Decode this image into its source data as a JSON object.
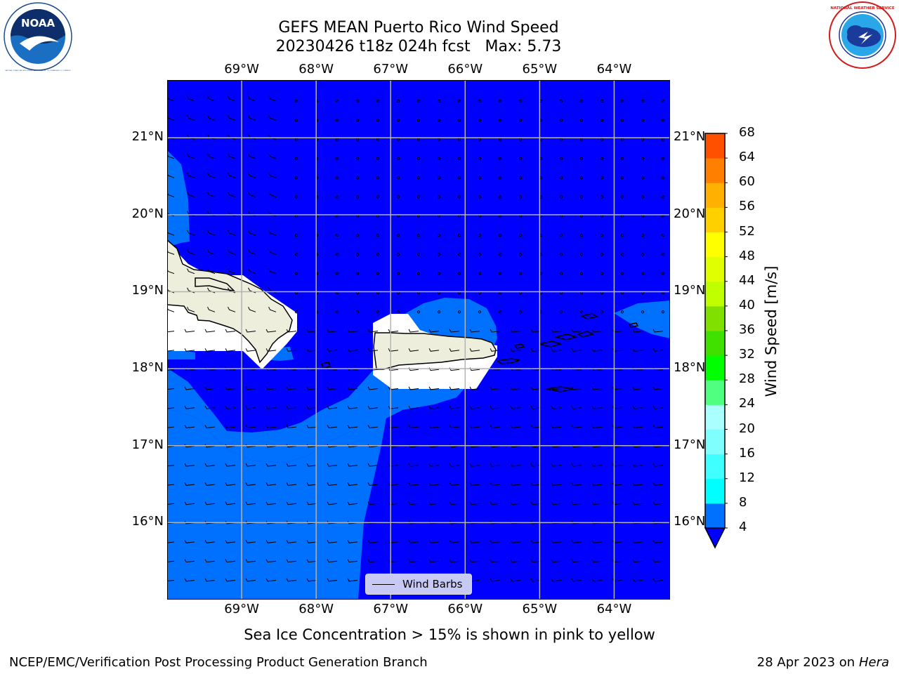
{
  "title": {
    "line1": "GEFS MEAN Puerto Rico Wind Speed",
    "line2": "20230426 t18z 024h fcst   Max: 5.73"
  },
  "logos": {
    "left": {
      "icon": "noaa-logo",
      "text": "NOAA",
      "ring_text": "NATIONAL OCEANIC AND ATMOSPHERIC ADMINISTRATION · U.S. DEPARTMENT OF COMMERCE"
    },
    "right": {
      "icon": "nws-logo",
      "ring_text": "NATIONAL WEATHER SERVICE"
    }
  },
  "map": {
    "lon_ticks": [
      {
        "label": "69°W",
        "value": -69
      },
      {
        "label": "68°W",
        "value": -68
      },
      {
        "label": "67°W",
        "value": -67
      },
      {
        "label": "66°W",
        "value": -66
      },
      {
        "label": "65°W",
        "value": -65
      },
      {
        "label": "64°W",
        "value": -64
      }
    ],
    "lat_ticks": [
      {
        "label": "21°N",
        "value": 21
      },
      {
        "label": "20°N",
        "value": 20
      },
      {
        "label": "19°N",
        "value": 19
      },
      {
        "label": "18°N",
        "value": 18
      },
      {
        "label": "17°N",
        "value": 17
      },
      {
        "label": "16°N",
        "value": 16
      }
    ],
    "lon_range": [
      -70.0,
      -63.25
    ],
    "lat_range": [
      15.0,
      21.75
    ],
    "grid": true,
    "colors": {
      "speed_0_4": "#0000ff",
      "speed_4_8": "#0070ff",
      "land": "#eeeedc"
    },
    "legend": {
      "label": "Wind Barbs",
      "placement": "bottom-center"
    }
  },
  "colorbar": {
    "label": "Wind Speed [m/s]",
    "ticks": [
      "4",
      "8",
      "12",
      "16",
      "20",
      "24",
      "28",
      "32",
      "36",
      "40",
      "44",
      "48",
      "52",
      "56",
      "60",
      "64",
      "68"
    ],
    "colors": [
      "#0070ff",
      "#00ffff",
      "#40ffff",
      "#80ffff",
      "#aaffff",
      "#50ff80",
      "#00ff00",
      "#40e000",
      "#80e000",
      "#c0ff00",
      "#e0ff00",
      "#ffff00",
      "#ffd000",
      "#ffb000",
      "#ff8000",
      "#ff5000",
      "#ff2000",
      "#ff0000"
    ],
    "under_color": "#0000ff"
  },
  "note": "Sea Ice Concentration > 15% is shown in pink to yellow",
  "footer": {
    "left": "NCEP/EMC/Verification Post Processing Product Generation Branch",
    "right_prefix": "28 Apr 2023 on ",
    "right_host": "Hera"
  }
}
